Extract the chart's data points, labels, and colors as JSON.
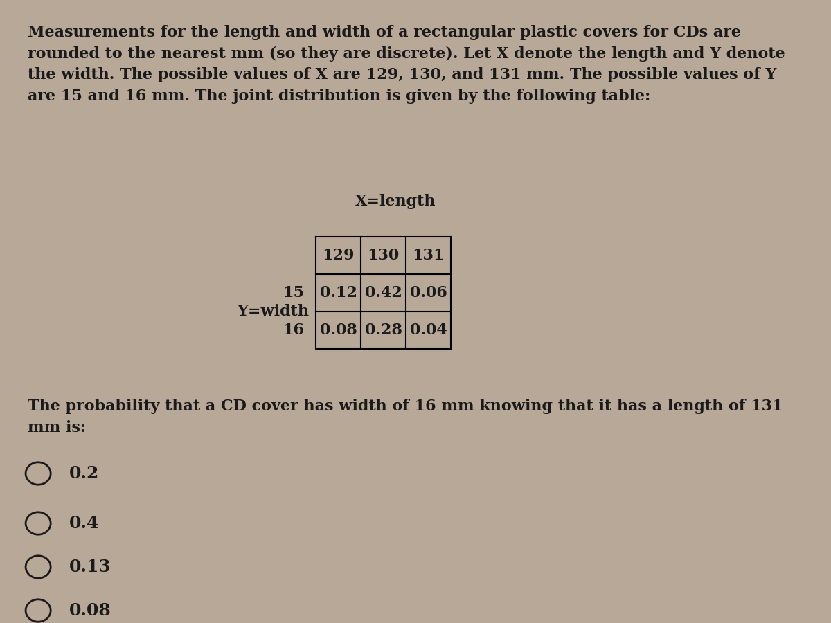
{
  "background_color": "#b8a898",
  "title_text": "Measurements for the length and width of a rectangular plastic covers for CDs are\nrounded to the nearest mm (so they are discrete). Let X denote the length and Y denote\nthe width. The possible values of X are 129, 130, and 131 mm. The possible values of Y\nare 15 and 16 mm. The joint distribution is given by the following table:",
  "x_label": "X=length",
  "y_label": "Y=width",
  "col_headers": [
    "129",
    "130",
    "131"
  ],
  "row_headers": [
    "15",
    "16"
  ],
  "table_data": [
    [
      "0.12",
      "0.42",
      "0.06"
    ],
    [
      "0.08",
      "0.28",
      "0.04"
    ]
  ],
  "question_text": "The probability that a CD cover has width of 16 mm knowing that it has a length of 131\nmm is:",
  "options": [
    "0.2",
    "0.4",
    "0.13",
    "0.08"
  ],
  "text_color": "#1a1a1a",
  "font_size_body": 16,
  "font_size_table": 16,
  "font_size_options": 18
}
